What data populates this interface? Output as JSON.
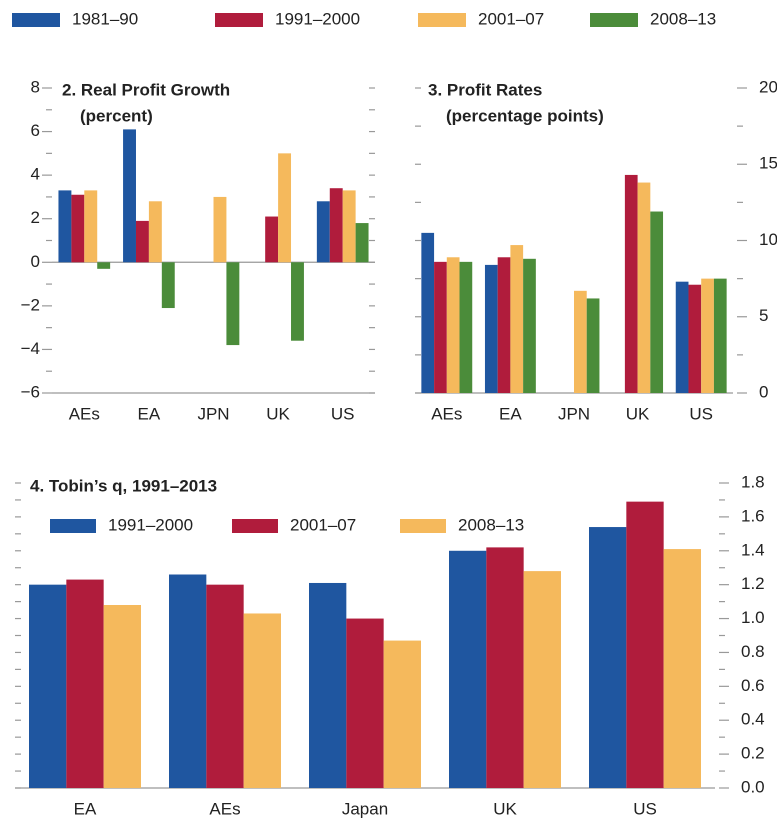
{
  "chart_data": [
    {
      "type": "bar",
      "title": "2. Real Profit Growth",
      "subtitle": "(percent)",
      "categories": [
        "AEs",
        "EA",
        "JPN",
        "UK",
        "US"
      ],
      "series": [
        {
          "name": "1981–90",
          "color": "#1f56a0",
          "values": [
            3.3,
            6.1,
            null,
            null,
            2.8
          ]
        },
        {
          "name": "1991–2000",
          "color": "#b01c3c",
          "values": [
            3.1,
            1.9,
            null,
            2.1,
            3.4
          ]
        },
        {
          "name": "2001–07",
          "color": "#f5b95c",
          "values": [
            3.3,
            2.8,
            3.0,
            5.0,
            3.3
          ]
        },
        {
          "name": "2008–13",
          "color": "#4b8c3a",
          "values": [
            -0.3,
            -2.1,
            -3.8,
            -3.6,
            1.8
          ]
        }
      ],
      "ylim": [
        -6,
        8
      ],
      "yticks": [
        {
          "value": -6,
          "label": "−6"
        },
        {
          "value": -4,
          "label": "−4"
        },
        {
          "value": -2,
          "label": "−2"
        },
        0,
        2,
        4,
        6,
        8
      ],
      "y_axis_side": "left",
      "legend": "top"
    },
    {
      "type": "bar",
      "title": "3. Profit Rates",
      "subtitle": "(percentage points)",
      "categories": [
        "AEs",
        "EA",
        "JPN",
        "UK",
        "US"
      ],
      "series": [
        {
          "color": "#1f56a0",
          "values": [
            10.5,
            8.4,
            null,
            null,
            7.3
          ]
        },
        {
          "color": "#b01c3c",
          "values": [
            8.6,
            8.9,
            null,
            14.3,
            7.1
          ]
        },
        {
          "color": "#f5b95c",
          "values": [
            8.9,
            9.7,
            6.7,
            13.8,
            7.5
          ]
        },
        {
          "color": "#4b8c3a",
          "values": [
            8.6,
            8.8,
            6.2,
            11.9,
            7.5
          ]
        }
      ],
      "ylim": [
        0,
        20
      ],
      "yticks": [
        0,
        5,
        10,
        15,
        20
      ],
      "y_axis_side": "right"
    },
    {
      "type": "bar",
      "title": "4.  Tobin’s q, 1991–2013",
      "categories": [
        "EA",
        "AEs",
        "Japan",
        "UK",
        "US"
      ],
      "series": [
        {
          "name": "1991–2000",
          "color": "#1f56a0",
          "values": [
            1.2,
            1.26,
            1.21,
            1.4,
            1.54
          ]
        },
        {
          "name": "2001–07",
          "color": "#b01c3c",
          "values": [
            1.23,
            1.2,
            1.0,
            1.42,
            1.69
          ]
        },
        {
          "name": "2008–13",
          "color": "#f5b95c",
          "values": [
            1.08,
            1.03,
            0.87,
            1.28,
            1.41
          ]
        }
      ],
      "ylim": [
        0,
        1.8
      ],
      "yticks": [
        {
          "value": 0,
          "label": "0.0"
        },
        0.2,
        0.4,
        0.6,
        0.8,
        {
          "value": 1,
          "label": "1.0"
        },
        1.2,
        1.4,
        1.6,
        1.8
      ],
      "y_axis_side": "right",
      "legend": "upper left"
    }
  ]
}
